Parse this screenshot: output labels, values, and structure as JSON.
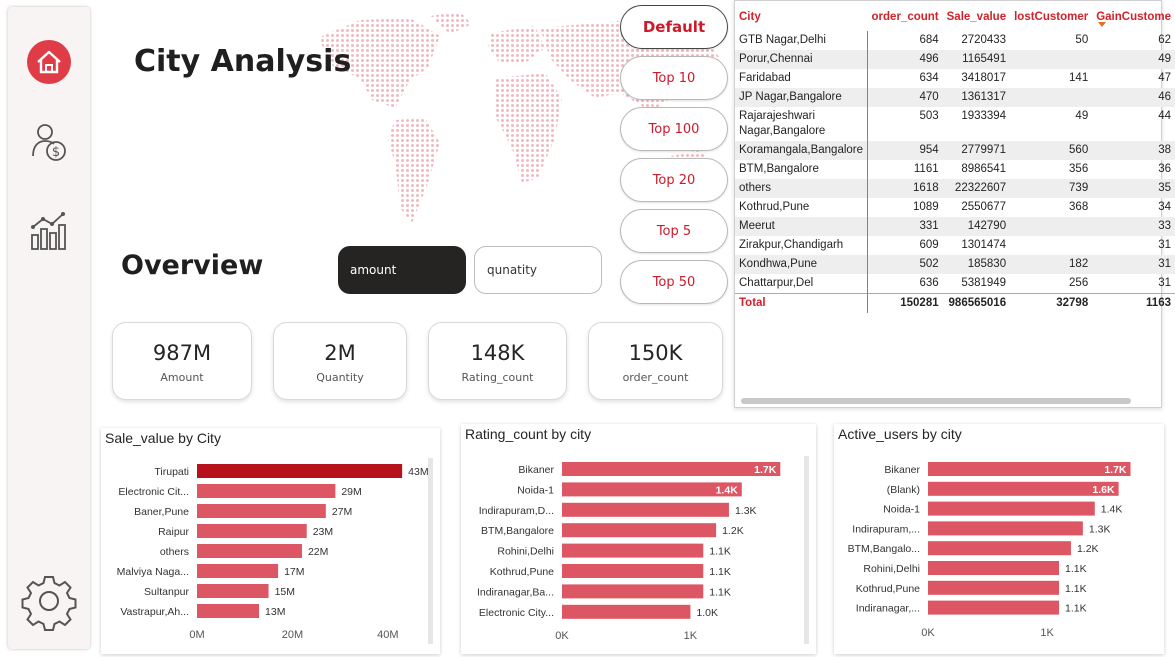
{
  "colors": {
    "accent": "#d2232a",
    "bar": "#dd5663",
    "bar_highlight": "#b5121b",
    "dark_toggle": "#252423"
  },
  "sidebar": {
    "items": [
      {
        "icon": "home-icon"
      },
      {
        "icon": "customer-money-icon"
      },
      {
        "icon": "analytics-chart-icon"
      },
      {
        "icon": "gear-icon"
      }
    ]
  },
  "page": {
    "title": "City Analysis",
    "overview": "Overview"
  },
  "filters": {
    "default_label": "Default",
    "top_buttons": [
      "Top 10",
      "Top 100",
      "Top 20",
      "Top 5",
      "Top 50"
    ]
  },
  "toggles": {
    "amount": "amount",
    "quantity": "qunatity"
  },
  "kpis": [
    {
      "value": "987M",
      "label": "Amount"
    },
    {
      "value": "2M",
      "label": "Quantity"
    },
    {
      "value": "148K",
      "label": "Rating_count"
    },
    {
      "value": "150K",
      "label": "order_count"
    }
  ],
  "table": {
    "columns": [
      "City",
      "order_count",
      "Sale_value",
      "lostCustomer",
      "GainCustome"
    ],
    "rows": [
      [
        "GTB Nagar,Delhi",
        "684",
        "2720433",
        "50",
        "62"
      ],
      [
        "Porur,Chennai",
        "496",
        "1165491",
        "",
        "49"
      ],
      [
        "Faridabad",
        "634",
        "3418017",
        "141",
        "47"
      ],
      [
        "JP Nagar,Bangalore",
        "470",
        "1361317",
        "",
        "46"
      ],
      [
        "Rajarajeshwari Nagar,Bangalore",
        "503",
        "1933394",
        "49",
        "44"
      ],
      [
        "Koramangala,Bangalore",
        "954",
        "2779971",
        "560",
        "38"
      ],
      [
        "BTM,Bangalore",
        "1161",
        "8986541",
        "356",
        "36"
      ],
      [
        "others",
        "1618",
        "22322607",
        "739",
        "35"
      ],
      [
        "Kothrud,Pune",
        "1089",
        "2550677",
        "368",
        "34"
      ],
      [
        "Meerut",
        "331",
        "142790",
        "",
        "33"
      ],
      [
        "Zirakpur,Chandigarh",
        "609",
        "1301474",
        "",
        "31"
      ],
      [
        "Kondhwa,Pune",
        "502",
        "185830",
        "182",
        "31"
      ],
      [
        "Chattarpur,Del",
        "636",
        "5381949",
        "256",
        "31"
      ]
    ],
    "total": [
      "Total",
      "150281",
      "986565016",
      "32798",
      "1163"
    ]
  },
  "chart_data": [
    {
      "type": "bar",
      "title": "Sale_value by City",
      "categories": [
        "Tirupati",
        "Electronic Cit...",
        "Baner,Pune",
        "Raipur",
        "others",
        "Malviya Naga...",
        "Sultanpur",
        "Vastrapur,Ah..."
      ],
      "values": [
        43,
        29,
        27,
        23,
        22,
        17,
        15,
        13
      ],
      "value_labels": [
        "43M",
        "29M",
        "27M",
        "23M",
        "22M",
        "17M",
        "15M",
        "13M"
      ],
      "highlight_index": 0,
      "xlim": [
        0,
        48
      ],
      "xticks": [
        0,
        20,
        40
      ],
      "xtick_labels": [
        "0M",
        "20M",
        "40M"
      ],
      "label_inside": false
    },
    {
      "type": "bar",
      "title": "Rating_count by city",
      "categories": [
        "Bikaner",
        "Noida-1",
        "Indirapuram,D...",
        "BTM,Bangalore",
        "Rohini,Delhi",
        "Kothrud,Pune",
        "Indiranagar,Ba...",
        "Electronic City..."
      ],
      "values": [
        1.7,
        1.4,
        1.3,
        1.2,
        1.1,
        1.1,
        1.1,
        1.0
      ],
      "value_labels": [
        "1.7K",
        "1.4K",
        "1.3K",
        "1.2K",
        "1.1K",
        "1.1K",
        "1.1K",
        "1.0K"
      ],
      "highlight_index": -1,
      "xlim": [
        0,
        1.83
      ],
      "xticks": [
        0,
        1
      ],
      "xtick_labels": [
        "0K",
        "1K"
      ],
      "label_inside": true
    },
    {
      "type": "bar",
      "title": "Active_users by city",
      "categories": [
        "Bikaner",
        "(Blank)",
        "Noida-1",
        "Indirapuram,...",
        "BTM,Bangalo...",
        "Rohini,Delhi",
        "Kothrud,Pune",
        "Indiranagar,..."
      ],
      "values": [
        1.7,
        1.6,
        1.4,
        1.3,
        1.2,
        1.1,
        1.1,
        1.1
      ],
      "value_labels": [
        "1.7K",
        "1.6K",
        "1.4K",
        "1.3K",
        "1.2K",
        "1.1K",
        "1.1K",
        "1.1K"
      ],
      "highlight_index": -1,
      "xlim": [
        0,
        1.83
      ],
      "xticks": [
        0,
        1
      ],
      "xtick_labels": [
        "0K",
        "1K"
      ],
      "label_inside": true
    }
  ]
}
